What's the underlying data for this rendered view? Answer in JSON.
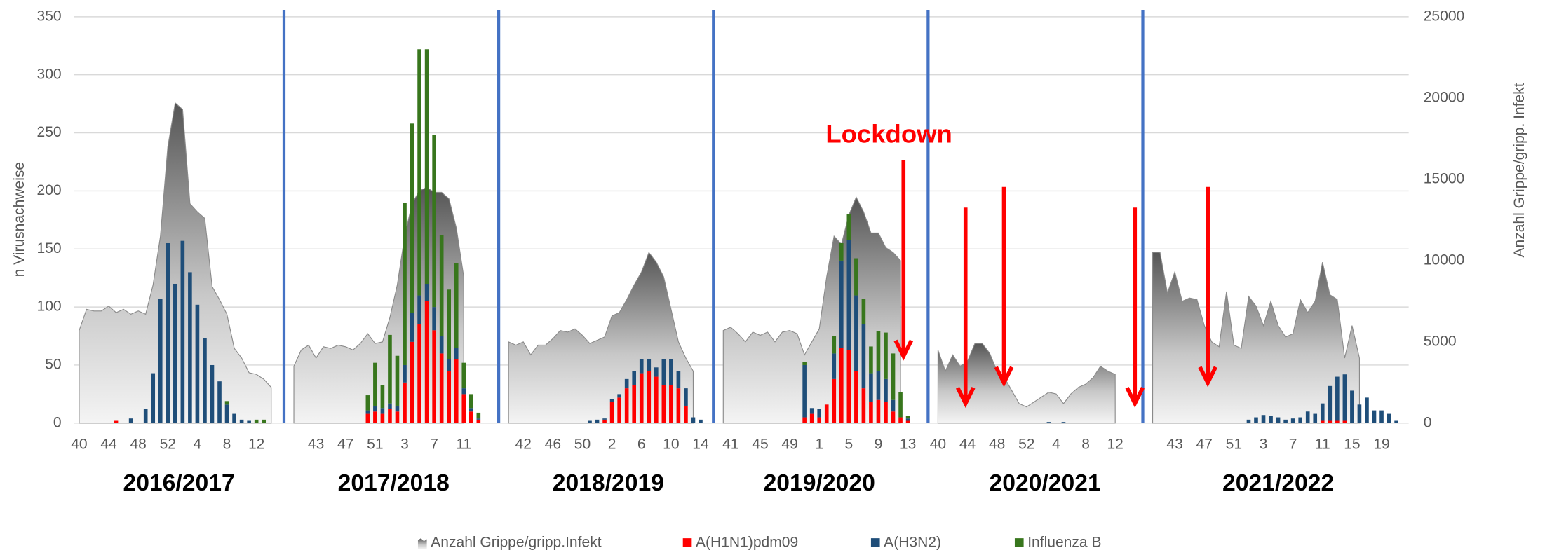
{
  "chart_data": {
    "type": "bar",
    "ylabel": "n Virusnachweise",
    "y2label": "Anzahl Grippe/gripp. Infekt",
    "ylim": [
      0,
      350
    ],
    "yticks": [
      0,
      50,
      100,
      150,
      200,
      250,
      300,
      350
    ],
    "y2lim": [
      0,
      25000
    ],
    "y2ticks": [
      0,
      5000,
      10000,
      15000,
      20000,
      25000
    ],
    "grid": true,
    "annotation": "Lockdown",
    "series": [
      {
        "name": "Anzahl Grippe/gripp.Infekt",
        "color": "#808080",
        "axis": "y2",
        "type": "area"
      },
      {
        "name": "A(H1N1)pdm09",
        "color": "#ff0000"
      },
      {
        "name": "A(H3N2)",
        "color": "#1f4e79"
      },
      {
        "name": "Influenza B",
        "color": "#38761d"
      }
    ],
    "seasons": [
      {
        "label": "2016/2017",
        "categories": [
          40,
          null,
          null,
          null,
          44,
          null,
          null,
          null,
          48,
          null,
          null,
          null,
          52,
          null,
          null,
          null,
          4,
          null,
          null,
          null,
          8,
          null,
          null,
          null,
          12,
          null,
          null
        ],
        "series_values": [
          [
            5700,
            7000,
            6900,
            6900,
            7200,
            6800,
            7000,
            6700,
            6900,
            6700,
            8500,
            11500,
            17000,
            19700,
            19300,
            13500,
            13000,
            12600,
            8400,
            7600,
            6700,
            4600,
            4000,
            3100,
            3000,
            2700,
            2200
          ],
          [
            null,
            null,
            null,
            null,
            null,
            2,
            null,
            null,
            null,
            null,
            null,
            null,
            null,
            null,
            null,
            null,
            null,
            null,
            null,
            null,
            null,
            null,
            null,
            null,
            null,
            null,
            null
          ],
          [
            null,
            null,
            null,
            null,
            null,
            null,
            null,
            4,
            null,
            12,
            43,
            107,
            155,
            120,
            157,
            130,
            102,
            73,
            50,
            36,
            16,
            8,
            3,
            2,
            null,
            null,
            null
          ],
          [
            null,
            null,
            null,
            null,
            null,
            null,
            null,
            null,
            null,
            null,
            null,
            null,
            null,
            null,
            null,
            null,
            null,
            null,
            null,
            null,
            3,
            null,
            null,
            null,
            3,
            3,
            null
          ]
        ]
      },
      {
        "label": "2017/2018",
        "categories": [
          null,
          null,
          null,
          43,
          null,
          null,
          null,
          47,
          null,
          null,
          null,
          51,
          null,
          null,
          null,
          3,
          null,
          null,
          null,
          7,
          null,
          null,
          null,
          11,
          null,
          null,
          null
        ],
        "series_values": [
          [
            3500,
            4500,
            4800,
            4000,
            4700,
            4600,
            4800,
            4700,
            4500,
            4900,
            5500,
            4900,
            5000,
            6500,
            8500,
            11500,
            13500,
            14300,
            14500,
            14200,
            14200,
            13800,
            12000,
            9000,
            null,
            null,
            null
          ],
          [
            null,
            null,
            null,
            null,
            null,
            null,
            null,
            null,
            null,
            null,
            8,
            10,
            8,
            12,
            10,
            35,
            70,
            85,
            105,
            80,
            60,
            45,
            55,
            25,
            10,
            3,
            null
          ],
          [
            null,
            null,
            null,
            null,
            null,
            null,
            null,
            null,
            null,
            null,
            3,
            5,
            5,
            5,
            5,
            15,
            25,
            25,
            15,
            20,
            15,
            10,
            10,
            5,
            3,
            1,
            null
          ],
          [
            null,
            null,
            null,
            null,
            null,
            null,
            null,
            null,
            null,
            null,
            13,
            37,
            20,
            59,
            43,
            140,
            163,
            212,
            202,
            148,
            87,
            60,
            73,
            22,
            12,
            5,
            null
          ]
        ]
      },
      {
        "label": "2018/2019",
        "categories": [
          null,
          null,
          42,
          null,
          null,
          null,
          46,
          null,
          null,
          null,
          50,
          null,
          null,
          null,
          2,
          null,
          null,
          null,
          6,
          null,
          null,
          null,
          10,
          null,
          null,
          null,
          14
        ],
        "series_values": [
          [
            5000,
            4800,
            5000,
            4200,
            4800,
            4800,
            5200,
            5700,
            5600,
            5800,
            5400,
            4900,
            5100,
            5300,
            6600,
            6800,
            7600,
            8500,
            9300,
            10500,
            9900,
            9000,
            7000,
            5000,
            4000,
            3200,
            null
          ],
          [
            null,
            null,
            null,
            null,
            null,
            null,
            null,
            null,
            null,
            null,
            null,
            null,
            null,
            3,
            18,
            22,
            30,
            33,
            43,
            45,
            40,
            33,
            33,
            30,
            15,
            null,
            null
          ],
          [
            null,
            null,
            null,
            null,
            null,
            null,
            null,
            null,
            null,
            null,
            null,
            2,
            3,
            1,
            3,
            3,
            8,
            12,
            12,
            10,
            8,
            22,
            22,
            15,
            15,
            5,
            3
          ],
          [
            null,
            null,
            null,
            null,
            null,
            null,
            null,
            null,
            null,
            null,
            null,
            null,
            null,
            null,
            null,
            null,
            null,
            null,
            null,
            null,
            null,
            null,
            null,
            null,
            null,
            null,
            null
          ]
        ]
      },
      {
        "label": "2019/2020",
        "categories": [
          null,
          41,
          null,
          null,
          null,
          45,
          null,
          null,
          null,
          49,
          null,
          null,
          null,
          1,
          null,
          null,
          null,
          5,
          null,
          null,
          null,
          9,
          null,
          null,
          null,
          13
        ],
        "series_values": [
          [
            5700,
            5900,
            5500,
            5000,
            5600,
            5400,
            5600,
            5000,
            5600,
            5700,
            5500,
            4200,
            5000,
            5800,
            9000,
            11500,
            11000,
            12800,
            13900,
            13000,
            11700,
            11700,
            10800,
            10500,
            10000,
            null
          ],
          [
            null,
            null,
            null,
            null,
            null,
            null,
            null,
            null,
            null,
            null,
            null,
            5,
            8,
            5,
            16,
            38,
            65,
            63,
            45,
            30,
            18,
            20,
            18,
            10,
            5,
            2
          ],
          [
            null,
            null,
            null,
            null,
            null,
            null,
            null,
            null,
            null,
            null,
            null,
            45,
            5,
            7,
            null,
            22,
            75,
            95,
            65,
            55,
            25,
            25,
            20,
            10,
            null,
            2
          ],
          [
            null,
            null,
            null,
            null,
            null,
            null,
            null,
            null,
            null,
            null,
            null,
            3,
            null,
            null,
            null,
            15,
            15,
            22,
            32,
            22,
            23,
            34,
            40,
            40,
            22,
            2
          ]
        ]
      },
      {
        "label": "2020/2021",
        "categories": [
          40,
          null,
          null,
          null,
          44,
          null,
          null,
          null,
          48,
          null,
          null,
          null,
          52,
          null,
          null,
          null,
          4,
          null,
          null,
          null,
          8,
          null,
          null,
          null,
          12,
          null,
          null,
          null,
          null
        ],
        "series_values": [
          [
            4500,
            3200,
            4200,
            3500,
            3800,
            4900,
            4900,
            4300,
            3200,
            2800,
            2000,
            1200,
            1000,
            1300,
            1600,
            1900,
            1800,
            1200,
            1800,
            2200,
            2400,
            2800,
            3500,
            3200,
            3000,
            null,
            null,
            null,
            null
          ],
          [
            null,
            null,
            null,
            null,
            null,
            null,
            null,
            null,
            null,
            null,
            null,
            null,
            null,
            null,
            null,
            null,
            null,
            null,
            null,
            null,
            null,
            null,
            null,
            null,
            null,
            null,
            null,
            null,
            null
          ],
          [
            null,
            null,
            null,
            null,
            null,
            null,
            null,
            null,
            null,
            null,
            null,
            null,
            null,
            null,
            null,
            1,
            null,
            1,
            null,
            null,
            null,
            null,
            null,
            null,
            null,
            null,
            null,
            null,
            null
          ],
          [
            null,
            null,
            null,
            null,
            null,
            null,
            null,
            null,
            null,
            null,
            null,
            null,
            null,
            null,
            null,
            null,
            null,
            null,
            null,
            null,
            null,
            null,
            null,
            null,
            null,
            null,
            null,
            null,
            null
          ]
        ]
      },
      {
        "label": "2021/2022",
        "categories": [
          null,
          null,
          null,
          43,
          null,
          null,
          null,
          47,
          null,
          null,
          null,
          51,
          null,
          null,
          null,
          3,
          null,
          null,
          null,
          7,
          null,
          null,
          null,
          11,
          null,
          null,
          null,
          15,
          null,
          null,
          null,
          19,
          null,
          null
        ],
        "series_values": [
          [
            10500,
            10500,
            8000,
            9300,
            7500,
            7700,
            7600,
            6000,
            5000,
            4700,
            8100,
            4800,
            4600,
            7800,
            7200,
            6000,
            7500,
            6000,
            5300,
            5500,
            7600,
            6800,
            7500,
            9900,
            7900,
            7600,
            4000,
            6000,
            4000,
            null,
            null,
            null,
            null,
            null
          ],
          [
            null,
            null,
            null,
            null,
            null,
            null,
            null,
            null,
            null,
            null,
            null,
            null,
            null,
            null,
            null,
            null,
            null,
            null,
            null,
            null,
            null,
            null,
            null,
            2,
            2,
            2,
            2,
            null,
            null,
            null,
            null,
            null,
            null,
            null
          ],
          [
            null,
            null,
            null,
            null,
            null,
            null,
            null,
            null,
            null,
            null,
            null,
            null,
            null,
            3,
            5,
            7,
            6,
            5,
            3,
            4,
            5,
            10,
            8,
            15,
            30,
            38,
            40,
            28,
            16,
            22,
            11,
            11,
            8,
            2
          ],
          [
            null,
            null,
            null,
            null,
            null,
            null,
            null,
            null,
            null,
            null,
            null,
            null,
            null,
            null,
            null,
            null,
            null,
            null,
            null,
            null,
            null,
            null,
            null,
            null,
            null,
            null,
            null,
            null,
            null,
            null,
            null,
            null,
            null,
            null
          ]
        ]
      }
    ]
  }
}
